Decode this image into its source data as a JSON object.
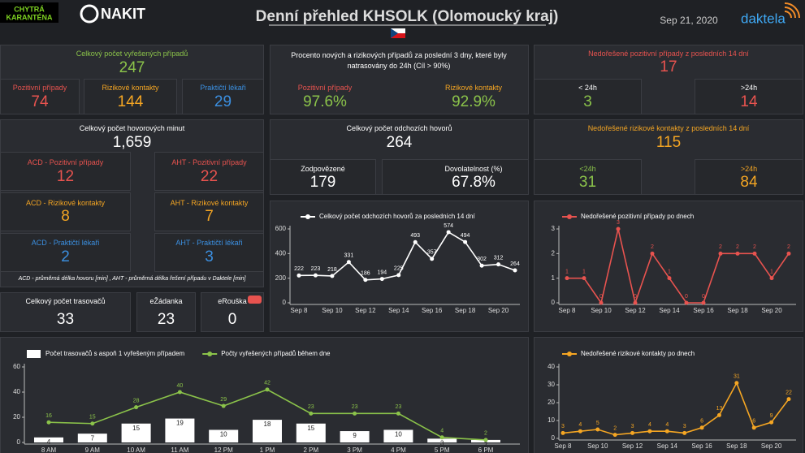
{
  "header": {
    "logo_left": [
      "CHYTRÁ",
      "KARANTÉNA"
    ],
    "logo_nakit": "NAKIT",
    "title": "Denní přehled KHSOLK (Olomoucký kraj)",
    "date": "Sep 21, 2020",
    "logo_right": "daktela"
  },
  "tiles": {
    "resolved": {
      "label": "Celkový počet vyřešených případů",
      "value": "247",
      "items": [
        {
          "label": "Pozitivní případy",
          "value": "74"
        },
        {
          "label": "Rizikové kontakty",
          "value": "144"
        },
        {
          "label": "Praktičtí lékaři",
          "value": "29"
        }
      ]
    },
    "traced_pct": {
      "label": "Procento nových a rizikových případů za poslední 3 dny, které byly natrasovány do 24h (Cíl > 90%)",
      "items": [
        {
          "label": "Pozitivní případy",
          "value": "97.6%"
        },
        {
          "label": "Rizikové kontakty",
          "value": "92.9%"
        }
      ]
    },
    "open_positive": {
      "label": "Nedořešené pozitivní případy z posledních 14 dní",
      "value": "17",
      "items": [
        {
          "label": "< 24h",
          "value": "3"
        },
        {
          "label": ">24h",
          "value": "14"
        }
      ]
    },
    "call_minutes": {
      "label": "Celkový počet hovorových minut",
      "value": "1,659",
      "items": [
        {
          "label": "ACD - Pozitivní případy",
          "value": "12"
        },
        {
          "label": "AHT - Pozitivní případy",
          "value": "22"
        },
        {
          "label": "ACD - Rizikové kontakty",
          "value": "8"
        },
        {
          "label": "AHT - Rizikové kontakty",
          "value": "7"
        },
        {
          "label": "ACD - Praktičtí lékaři",
          "value": "2"
        },
        {
          "label": "AHT - Praktičtí lékaři",
          "value": "3"
        }
      ],
      "note": "ACD - průměrná délka hovoru [min] , AHT - průměrná délka řešení případu v Daktele [min]"
    },
    "outgoing": {
      "label": "Celkový počet odchozích hovorů",
      "value": "264",
      "items": [
        {
          "label": "Zodpovězené",
          "value": "179"
        },
        {
          "label": "Dovolatelnost (%)",
          "value": "67.8%"
        }
      ]
    },
    "open_risk": {
      "label": "Nedořešené rizikové kontakty z posledních 14 dní",
      "value": "115",
      "items": [
        {
          "label": "<24h",
          "value": "31"
        },
        {
          "label": ">24h",
          "value": "84"
        }
      ]
    },
    "tracers": {
      "label": "Celkový počet trasovačů",
      "value": "33"
    },
    "ezadanka": {
      "label": "eŽádanka",
      "value": "23"
    },
    "erouska": {
      "label": "eRouška",
      "value": "0"
    }
  },
  "chart_data": [
    {
      "type": "line",
      "categories": [
        "Sep 8",
        null,
        "Sep 10",
        null,
        "Sep 12",
        null,
        "Sep 14",
        null,
        "Sep 16",
        null,
        "Sep 18",
        null,
        "Sep 20",
        null
      ],
      "series": [
        {
          "name": "Celkový počet odchozích hovorů za posledních 14 dní",
          "color": "#ffffff",
          "values": [
            222,
            223,
            218,
            331,
            186,
            194,
            225,
            493,
            357,
            574,
            494,
            302,
            312,
            264
          ]
        }
      ],
      "ylim": [
        0,
        600
      ],
      "yticks": [
        0,
        200,
        400,
        600
      ],
      "grid": false
    },
    {
      "type": "line",
      "categories": [
        "Sep 8",
        null,
        "Sep 10",
        null,
        "Sep 12",
        null,
        "Sep 14",
        null,
        "Sep 16",
        null,
        "Sep 18",
        null,
        "Sep 20",
        null
      ],
      "series": [
        {
          "name": "Nedořešené pozitivní případy po dnech",
          "color": "#e8534f",
          "values": [
            1,
            1,
            0,
            3,
            0,
            2,
            1,
            0,
            0,
            2,
            2,
            2,
            1,
            2
          ]
        }
      ],
      "ylim": [
        0,
        3
      ],
      "yticks": [
        0,
        1,
        2,
        3
      ],
      "grid": false
    },
    {
      "type": "combo",
      "categories": [
        "8 AM",
        "9 AM",
        "10 AM",
        "11 AM",
        "12 PM",
        "1 PM",
        "2 PM",
        "3 PM",
        "4 PM",
        "5 PM",
        "6 PM"
      ],
      "series": [
        {
          "name": "Počet trasovačů s aspoň 1 vyřešeným případem",
          "kind": "bar",
          "color": "#ffffff",
          "values": [
            4,
            7,
            15,
            19,
            10,
            18,
            15,
            9,
            10,
            3,
            2
          ]
        },
        {
          "name": "Počty vyřešených případů během dne",
          "kind": "line",
          "color": "#8bc34a",
          "values": [
            16,
            15,
            28,
            40,
            29,
            42,
            23,
            23,
            23,
            4,
            2
          ]
        }
      ],
      "ylim": [
        0,
        60
      ],
      "yticks": [
        0,
        20,
        40,
        60
      ],
      "grid": false
    },
    {
      "type": "line",
      "categories": [
        "Sep 8",
        null,
        "Sep 10",
        null,
        "Sep 12",
        null,
        "Sep 14",
        null,
        "Sep 16",
        null,
        "Sep 18",
        null,
        "Sep 20",
        null
      ],
      "series": [
        {
          "name": "Nedořešené rizikové kontakty po dnech",
          "color": "#f5a623",
          "values": [
            3,
            4,
            5,
            2,
            3,
            4,
            4,
            3,
            6,
            13,
            31,
            6,
            9,
            22
          ]
        }
      ],
      "ylim": [
        0,
        40
      ],
      "yticks": [
        0,
        10,
        20,
        30,
        40
      ],
      "grid": false
    }
  ]
}
